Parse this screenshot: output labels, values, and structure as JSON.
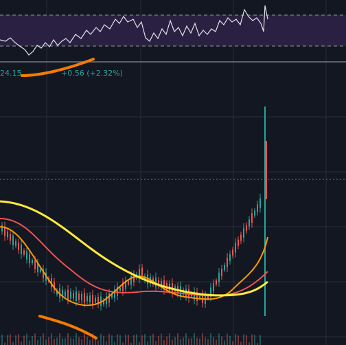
{
  "legend": {
    "value": "24.15",
    "change": "+0.56 (+2.32%)"
  }
}
